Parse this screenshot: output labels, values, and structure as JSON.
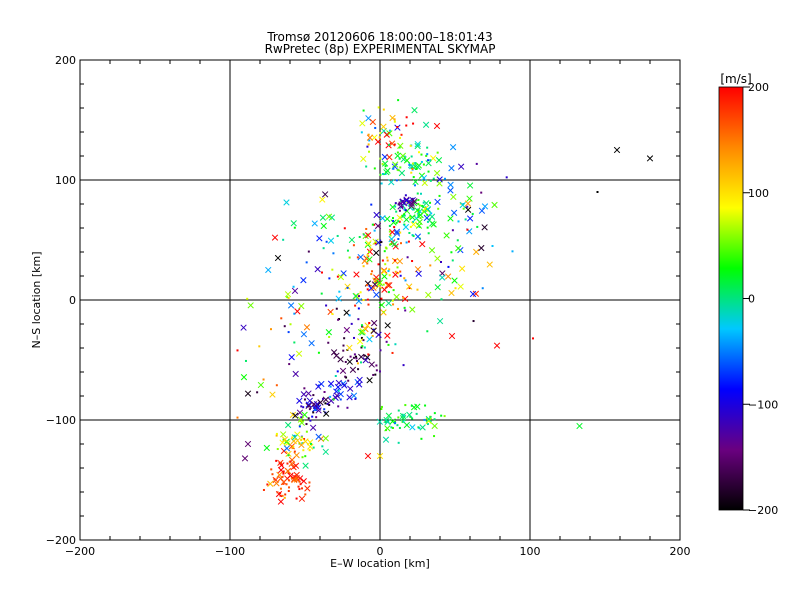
{
  "chart_data": {
    "type": "scatter",
    "title": "Tromsø 20120606 18:00:00–18:01:43",
    "subtitle": "RwPretec (8p) EXPERIMENTAL SKYMAP",
    "xlabel": "E–W location [km]",
    "ylabel": "N–S location [km]",
    "xlim": [
      -200,
      200
    ],
    "ylim": [
      -200,
      200
    ],
    "xticks": [
      "−200",
      "−100",
      "0",
      "100",
      "200"
    ],
    "yticks": [
      "−200",
      "−100",
      "0",
      "100",
      "200"
    ],
    "grid": true,
    "colorbar": {
      "label": "[m/s]",
      "range": [
        -200,
        200
      ],
      "ticks": [
        "200",
        "100",
        "0",
        "−100",
        "−200"
      ],
      "colormap": [
        "#000000",
        "#6a0080",
        "#0000ff",
        "#00c8ff",
        "#00ff00",
        "#ffff00",
        "#ff8800",
        "#ff0000"
      ]
    },
    "markers": [
      "x",
      "dot"
    ],
    "clusters": [
      {
        "cx": -62,
        "cy": -148,
        "sx": 6,
        "sy": 10,
        "n": 70,
        "v": 185,
        "dv": 25
      },
      {
        "cx": -55,
        "cy": -118,
        "sx": 9,
        "sy": 8,
        "n": 50,
        "v": 60,
        "dv": 60
      },
      {
        "cx": -42,
        "cy": -90,
        "sx": 9,
        "sy": 7,
        "n": 45,
        "v": -120,
        "dv": 40
      },
      {
        "cx": -25,
        "cy": -75,
        "sx": 8,
        "sy": 6,
        "n": 25,
        "v": -90,
        "dv": 40
      },
      {
        "cx": -15,
        "cy": -45,
        "sx": 10,
        "sy": 12,
        "n": 40,
        "v": -170,
        "dv": 30
      },
      {
        "cx": -8,
        "cy": -20,
        "sx": 12,
        "sy": 15,
        "n": 45,
        "v": 0,
        "dv": 110
      },
      {
        "cx": 5,
        "cy": 15,
        "sx": 12,
        "sy": 14,
        "n": 60,
        "v": 120,
        "dv": 90
      },
      {
        "cx": 2,
        "cy": 45,
        "sx": 14,
        "sy": 10,
        "n": 50,
        "v": 80,
        "dv": 120
      },
      {
        "cx": 22,
        "cy": 70,
        "sx": 10,
        "sy": 10,
        "n": 90,
        "v": 15,
        "dv": 30
      },
      {
        "cx": 16,
        "cy": 82,
        "sx": 3,
        "sy": 3,
        "n": 25,
        "v": -130,
        "dv": 20
      },
      {
        "cx": 18,
        "cy": 110,
        "sx": 12,
        "sy": 10,
        "n": 70,
        "v": 10,
        "dv": 40
      },
      {
        "cx": 5,
        "cy": 140,
        "sx": 10,
        "sy": 12,
        "n": 45,
        "v": 80,
        "dv": 90
      },
      {
        "cx": 55,
        "cy": 90,
        "sx": 12,
        "sy": 20,
        "n": 30,
        "v": -20,
        "dv": 80
      },
      {
        "cx": 20,
        "cy": -100,
        "sx": 12,
        "sy": 7,
        "n": 55,
        "v": 10,
        "dv": 25
      },
      {
        "cx": -35,
        "cy": 20,
        "sx": 20,
        "sy": 35,
        "n": 55,
        "v": 20,
        "dv": 100
      },
      {
        "cx": 40,
        "cy": 20,
        "sx": 18,
        "sy": 25,
        "n": 40,
        "v": 20,
        "dv": 130
      },
      {
        "cx": -65,
        "cy": -40,
        "sx": 12,
        "sy": 30,
        "n": 25,
        "v": 40,
        "dv": 120
      }
    ],
    "outliers": [
      {
        "x": 158,
        "y": 125,
        "m": "x",
        "v": -200
      },
      {
        "x": 180,
        "y": 118,
        "m": "x",
        "v": -200
      },
      {
        "x": 145,
        "y": 90,
        "m": "dot",
        "v": -200
      },
      {
        "x": 133,
        "y": -105,
        "m": "x",
        "v": 20
      },
      {
        "x": 102,
        "y": -32,
        "m": "dot",
        "v": 200
      },
      {
        "x": 78,
        "y": -38,
        "m": "x",
        "v": 200
      },
      {
        "x": -70,
        "y": 52,
        "m": "x",
        "v": 200
      },
      {
        "x": -68,
        "y": 35,
        "m": "x",
        "v": -200
      },
      {
        "x": -90,
        "y": -132,
        "m": "x",
        "v": -150
      },
      {
        "x": -88,
        "y": -120,
        "m": "x",
        "v": -150
      },
      {
        "x": -88,
        "y": -78,
        "m": "x",
        "v": -190
      },
      {
        "x": -95,
        "y": -98,
        "m": "dot",
        "v": 150
      },
      {
        "x": -95,
        "y": -42,
        "m": "dot",
        "v": 200
      },
      {
        "x": -8,
        "y": -130,
        "m": "x",
        "v": 200
      },
      {
        "x": 0,
        "y": -130,
        "m": "x",
        "v": 100
      },
      {
        "x": 38,
        "y": 145,
        "m": "x",
        "v": 200
      },
      {
        "x": 70,
        "y": 78,
        "m": "x",
        "v": -40
      },
      {
        "x": 75,
        "y": 45,
        "m": "dot",
        "v": -30
      },
      {
        "x": 48,
        "y": -30,
        "m": "x",
        "v": 200
      },
      {
        "x": 62,
        "y": 5,
        "m": "x",
        "v": -80
      }
    ]
  }
}
